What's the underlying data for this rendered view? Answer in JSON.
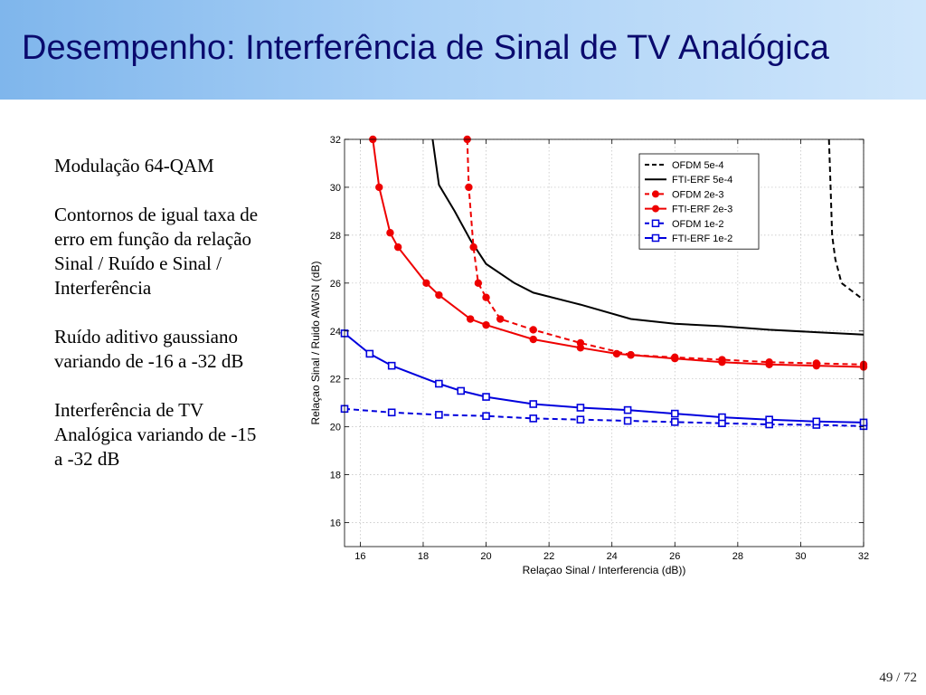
{
  "slide": {
    "title": "Desempenho: Interferência de Sinal de TV Analógica",
    "bullets": [
      "Modulação 64-QAM",
      "Contornos de igual taxa de erro em função da relação Sinal / Ruído e Sinal / Interferência",
      "Ruído aditivo gaussiano variando de -16 a -32 dB",
      "Interferência de TV Analógica variando de -15 a -32 dB"
    ],
    "page_number": "49 / 72"
  },
  "chart_data": {
    "type": "line",
    "xlabel": "Relaçao Sinal / Interferencia (dB))",
    "ylabel": "Relaçao Sinal / Ruido AWGN (dB)",
    "xlim": [
      15.5,
      32
    ],
    "ylim": [
      15,
      32
    ],
    "xticks": [
      16,
      18,
      20,
      22,
      24,
      26,
      28,
      30,
      32
    ],
    "yticks": [
      16,
      18,
      20,
      22,
      24,
      26,
      28,
      30,
      32
    ],
    "grid": true,
    "legend_position": "top-right",
    "series": [
      {
        "name": "OFDM 5e-4",
        "color": "#000000",
        "dash": true,
        "marker": "none",
        "x": [
          30.9,
          30.95,
          31.0,
          31.1,
          31.3,
          32.0
        ],
        "y": [
          32.0,
          30.0,
          28.0,
          27.0,
          26.0,
          25.3
        ]
      },
      {
        "name": "FTI-ERF 5e-4",
        "color": "#000000",
        "dash": false,
        "marker": "none",
        "x": [
          18.3,
          18.5,
          19.0,
          19.5,
          20.0,
          20.9,
          21.5,
          23.0,
          24.6,
          26.0,
          27.5,
          29.0,
          30.5,
          32.0
        ],
        "y": [
          32.0,
          30.1,
          29.0,
          27.8,
          26.8,
          26.0,
          25.6,
          25.1,
          24.5,
          24.3,
          24.2,
          24.05,
          23.95,
          23.85
        ]
      },
      {
        "name": "OFDM 2e-3",
        "color": "#ee0000",
        "dash": true,
        "marker": "circle",
        "x": [
          19.4,
          19.45,
          19.6,
          19.75,
          20.0,
          20.45,
          21.5,
          23.0,
          24.6,
          26.0,
          27.5,
          29.0,
          30.5,
          32.0
        ],
        "y": [
          32.0,
          30.0,
          27.5,
          26.0,
          25.4,
          24.5,
          24.05,
          23.5,
          23.0,
          22.9,
          22.8,
          22.7,
          22.65,
          22.6
        ]
      },
      {
        "name": "FTI-ERF 2e-3",
        "color": "#ee0000",
        "dash": false,
        "marker": "circle",
        "x": [
          16.4,
          16.6,
          16.95,
          17.2,
          18.1,
          18.5,
          19.5,
          20.0,
          21.5,
          23.0,
          24.15,
          24.6,
          26.0,
          27.5,
          29.0,
          30.5,
          32.0
        ],
        "y": [
          32.0,
          30.0,
          28.1,
          27.5,
          26.0,
          25.5,
          24.5,
          24.25,
          23.65,
          23.3,
          23.05,
          23.0,
          22.85,
          22.7,
          22.6,
          22.55,
          22.5
        ]
      },
      {
        "name": "OFDM 1e-2",
        "color": "#0000dd",
        "dash": true,
        "marker": "square",
        "x": [
          15.5,
          17.0,
          18.5,
          20.0,
          21.5,
          23.0,
          24.5,
          26.0,
          27.5,
          29.0,
          30.5,
          32.0
        ],
        "y": [
          20.75,
          20.6,
          20.5,
          20.45,
          20.35,
          20.3,
          20.25,
          20.2,
          20.15,
          20.1,
          20.08,
          20.03
        ]
      },
      {
        "name": "FTI-ERF 1e-2",
        "color": "#0000dd",
        "dash": false,
        "marker": "square",
        "x": [
          15.5,
          16.3,
          17.0,
          18.5,
          19.2,
          20.0,
          21.5,
          23.0,
          24.5,
          26.0,
          27.5,
          29.0,
          30.5,
          32.0
        ],
        "y": [
          23.9,
          23.05,
          22.55,
          21.8,
          21.5,
          21.25,
          20.95,
          20.8,
          20.7,
          20.55,
          20.4,
          20.3,
          20.22,
          20.18
        ]
      }
    ]
  }
}
